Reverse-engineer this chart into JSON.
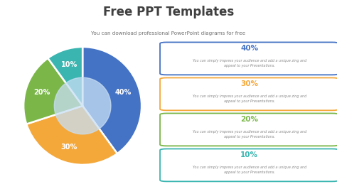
{
  "title": "Free PPT Templates",
  "subtitle": "You can download professional PowerPoint diagrams for free",
  "bg_color": "#ffffff",
  "title_color": "#404040",
  "subtitle_color": "#707070",
  "pie_values": [
    40,
    30,
    20,
    10
  ],
  "pie_colors": [
    "#4472c4",
    "#f5a83a",
    "#7ab648",
    "#3ab5b0"
  ],
  "pie_center_color": "#c8dff5",
  "pie_labels": [
    "40%",
    "30%",
    "20%",
    "10%"
  ],
  "pie_startangle": 90,
  "box_data": [
    {
      "pct": "40%",
      "color": "#4472c4",
      "text": "You can simply impress your audience and add a unique zing and\nappeal to your Presentations."
    },
    {
      "pct": "30%",
      "color": "#f5a83a",
      "text": "You can simply impress your audience and add a unique zing and\nappeal to your Presentations."
    },
    {
      "pct": "20%",
      "color": "#7ab648",
      "text": "You can simply impress your audience and add a unique zing and\nappeal to your Presentations."
    },
    {
      "pct": "10%",
      "color": "#3ab5b0",
      "text": "You can simply impress your audience and add a unique zing and\nappeal to your Presentations."
    }
  ]
}
